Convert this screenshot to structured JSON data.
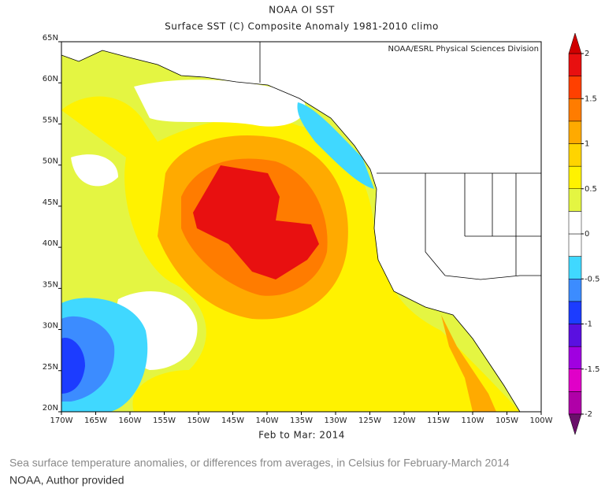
{
  "header": {
    "title": "NOAA OI SST",
    "subtitle": "Surface SST (C) Composite Anomaly 1981-2010 climo"
  },
  "map": {
    "credit_inset": "NOAA/ESRL Physical Sciences Division",
    "xlabel": "Feb to Mar: 2014",
    "xlim": [
      -170,
      -100
    ],
    "ylim": [
      20,
      65
    ],
    "lon_ticks": [
      {
        "value": -170,
        "label": "170W"
      },
      {
        "value": -165,
        "label": "165W"
      },
      {
        "value": -160,
        "label": "160W"
      },
      {
        "value": -155,
        "label": "155W"
      },
      {
        "value": -150,
        "label": "150W"
      },
      {
        "value": -145,
        "label": "145W"
      },
      {
        "value": -140,
        "label": "140W"
      },
      {
        "value": -135,
        "label": "135W"
      },
      {
        "value": -130,
        "label": "130W"
      },
      {
        "value": -125,
        "label": "125W"
      },
      {
        "value": -120,
        "label": "120W"
      },
      {
        "value": -115,
        "label": "115W"
      },
      {
        "value": -110,
        "label": "110W"
      },
      {
        "value": -105,
        "label": "105W"
      },
      {
        "value": -100,
        "label": "100W"
      }
    ],
    "lat_ticks": [
      {
        "value": 65,
        "label": "65N"
      },
      {
        "value": 60,
        "label": "60N"
      },
      {
        "value": 55,
        "label": "55N"
      },
      {
        "value": 50,
        "label": "50N"
      },
      {
        "value": 45,
        "label": "45N"
      },
      {
        "value": 40,
        "label": "40N"
      },
      {
        "value": 35,
        "label": "35N"
      },
      {
        "value": 30,
        "label": "30N"
      },
      {
        "value": 25,
        "label": "25N"
      },
      {
        "value": 20,
        "label": "20N"
      }
    ]
  },
  "colorbar": {
    "lim": [
      -2,
      2
    ],
    "ticks": [
      2,
      1.5,
      1,
      0.5,
      0,
      -0.5,
      -1,
      -1.5,
      -2
    ],
    "colors": [
      "#b000a8",
      "#e000c8",
      "#a000e0",
      "#5a10e0",
      "#1c3cff",
      "#3c8cff",
      "#40d8ff",
      "#ffffff",
      "#ffffff",
      "#e4f542",
      "#fff200",
      "#ffd400",
      "#ffaa00",
      "#ff7c00",
      "#ff4000",
      "#e81010"
    ],
    "over_color": "#d00000",
    "under_color": "#6a106a"
  },
  "caption": {
    "text": "Sea surface temperature anomalies, or differences from averages, in Celsius for February-March 2014",
    "credit": "NOAA, Author provided"
  }
}
